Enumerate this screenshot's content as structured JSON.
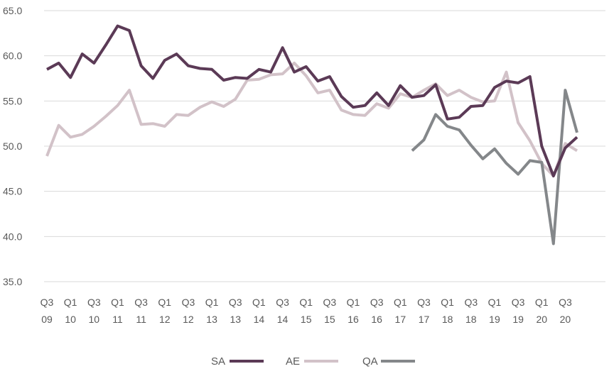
{
  "chart_data": {
    "type": "line",
    "title": "",
    "xlabel": "",
    "ylabel": "",
    "ylim": [
      35.0,
      65.0
    ],
    "yticks": [
      "35.0",
      "40.0",
      "45.0",
      "50.0",
      "55.0",
      "60.0",
      "65.0"
    ],
    "grid": true,
    "legend_position": "bottom",
    "categories": [
      "Q3 09",
      "Q4 09",
      "Q1 10",
      "Q2 10",
      "Q3 10",
      "Q4 10",
      "Q1 11",
      "Q2 11",
      "Q3 11",
      "Q4 11",
      "Q1 12",
      "Q2 12",
      "Q3 12",
      "Q4 12",
      "Q1 13",
      "Q2 13",
      "Q3 13",
      "Q4 13",
      "Q1 14",
      "Q2 14",
      "Q3 14",
      "Q4 14",
      "Q1 15",
      "Q2 15",
      "Q3 15",
      "Q4 15",
      "Q1 16",
      "Q2 16",
      "Q3 16",
      "Q4 16",
      "Q1 17",
      "Q2 17",
      "Q3 17",
      "Q4 17",
      "Q1 18",
      "Q2 18",
      "Q3 18",
      "Q4 18",
      "Q1 19",
      "Q2 19",
      "Q3 19",
      "Q4 19",
      "Q1 20",
      "Q2 20",
      "Q3 20",
      "Q4 20"
    ],
    "x_tick_labels": [
      {
        "index": 0,
        "line1": "Q3",
        "line2": "09"
      },
      {
        "index": 2,
        "line1": "Q1",
        "line2": "10"
      },
      {
        "index": 4,
        "line1": "Q3",
        "line2": "10"
      },
      {
        "index": 6,
        "line1": "Q1",
        "line2": "11"
      },
      {
        "index": 8,
        "line1": "Q3",
        "line2": "11"
      },
      {
        "index": 10,
        "line1": "Q1",
        "line2": "12"
      },
      {
        "index": 12,
        "line1": "Q3",
        "line2": "12"
      },
      {
        "index": 14,
        "line1": "Q1",
        "line2": "13"
      },
      {
        "index": 16,
        "line1": "Q3",
        "line2": "13"
      },
      {
        "index": 18,
        "line1": "Q1",
        "line2": "14"
      },
      {
        "index": 20,
        "line1": "Q3",
        "line2": "14"
      },
      {
        "index": 22,
        "line1": "Q1",
        "line2": "15"
      },
      {
        "index": 24,
        "line1": "Q3",
        "line2": "15"
      },
      {
        "index": 26,
        "line1": "Q1",
        "line2": "16"
      },
      {
        "index": 28,
        "line1": "Q3",
        "line2": "16"
      },
      {
        "index": 30,
        "line1": "Q1",
        "line2": "17"
      },
      {
        "index": 32,
        "line1": "Q3",
        "line2": "17"
      },
      {
        "index": 34,
        "line1": "Q1",
        "line2": "18"
      },
      {
        "index": 36,
        "line1": "Q3",
        "line2": "18"
      },
      {
        "index": 38,
        "line1": "Q1",
        "line2": "19"
      },
      {
        "index": 40,
        "line1": "Q3",
        "line2": "19"
      },
      {
        "index": 42,
        "line1": "Q1",
        "line2": "20"
      },
      {
        "index": 44,
        "line1": "Q3",
        "line2": "20"
      }
    ],
    "series": [
      {
        "name": "AE",
        "color": "#d2c2c8",
        "values": [
          48.9,
          52.3,
          51.0,
          51.3,
          52.2,
          53.3,
          54.5,
          56.2,
          52.4,
          52.5,
          52.2,
          53.5,
          53.4,
          54.3,
          54.9,
          54.4,
          55.2,
          57.3,
          57.4,
          57.9,
          58.0,
          59.2,
          57.8,
          55.9,
          56.2,
          54.0,
          53.5,
          53.4,
          54.7,
          54.2,
          55.8,
          55.4,
          56.2,
          56.9,
          55.6,
          56.2,
          55.4,
          54.9,
          55.0,
          58.2,
          52.6,
          50.6,
          48.1,
          46.7,
          50.3,
          49.5
        ]
      },
      {
        "name": "QA",
        "color": "#84878a",
        "values": [
          null,
          null,
          null,
          null,
          null,
          null,
          null,
          null,
          null,
          null,
          null,
          null,
          null,
          null,
          null,
          null,
          null,
          null,
          null,
          null,
          null,
          null,
          null,
          null,
          null,
          null,
          null,
          null,
          null,
          null,
          null,
          49.5,
          50.7,
          53.5,
          52.2,
          51.8,
          50.1,
          48.6,
          49.7,
          48.1,
          46.9,
          48.4,
          48.2,
          39.2,
          56.2,
          51.5
        ]
      },
      {
        "name": "SA",
        "color": "#5b3a56",
        "values": [
          58.5,
          59.2,
          57.6,
          60.2,
          59.2,
          61.2,
          63.3,
          62.8,
          58.9,
          57.5,
          59.5,
          60.2,
          58.9,
          58.6,
          58.5,
          57.3,
          57.6,
          57.5,
          58.5,
          58.2,
          60.9,
          58.2,
          58.8,
          57.2,
          57.7,
          55.5,
          54.3,
          54.5,
          55.9,
          54.5,
          56.7,
          55.4,
          55.6,
          56.8,
          53.0,
          53.2,
          54.4,
          54.5,
          56.5,
          57.2,
          57.0,
          57.7,
          50.0,
          46.7,
          49.8,
          51.0
        ]
      }
    ],
    "legend": [
      {
        "name": "SA",
        "color": "#5b3a56"
      },
      {
        "name": "AE",
        "color": "#d2c2c8"
      },
      {
        "name": "QA",
        "color": "#84878a"
      }
    ]
  }
}
